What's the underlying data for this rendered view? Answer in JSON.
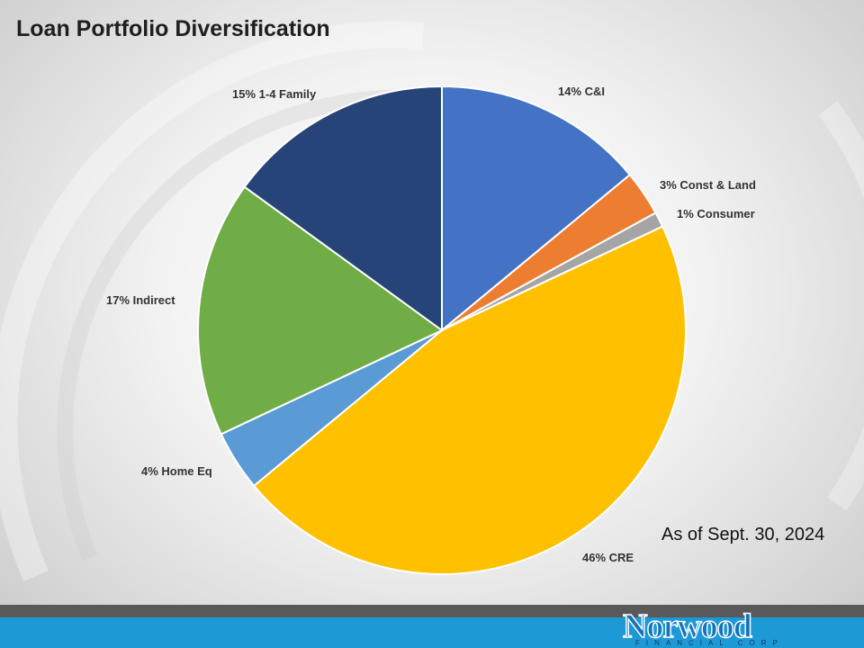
{
  "slide": {
    "title": "Loan Portfolio Diversification",
    "as_of": "As of Sept. 30, 2024"
  },
  "brand": {
    "logo_name": "Norwood",
    "logo_sub": "FINANCIAL CORP",
    "footer_gray": "#595959",
    "footer_blue": "#1d9ad6",
    "logo_color": "#1673b9"
  },
  "chart_data": {
    "type": "pie",
    "title": "Loan Portfolio Diversification",
    "units": "percent of total loans",
    "start_angle_deg": 0,
    "direction": "clockwise",
    "slices": [
      {
        "name": "C&I",
        "value": 14,
        "label": "14%  C&I",
        "color": "#4472c4"
      },
      {
        "name": "Const & Land",
        "value": 3,
        "label": "3%  Const & Land",
        "color": "#ed7d31"
      },
      {
        "name": "Consumer",
        "value": 1,
        "label": "1%  Consumer",
        "color": "#a5a5a5"
      },
      {
        "name": "CRE",
        "value": 46,
        "label": "46%  CRE",
        "color": "#ffc000"
      },
      {
        "name": "Home Eq",
        "value": 4,
        "label": "4%  Home Eq",
        "color": "#5b9bd5"
      },
      {
        "name": "Indirect",
        "value": 17,
        "label": "17%  Indirect",
        "color": "#70ad47"
      },
      {
        "name": "1-4 Family",
        "value": 15,
        "label": "15%  1-4 Family",
        "color": "#264478"
      }
    ]
  }
}
